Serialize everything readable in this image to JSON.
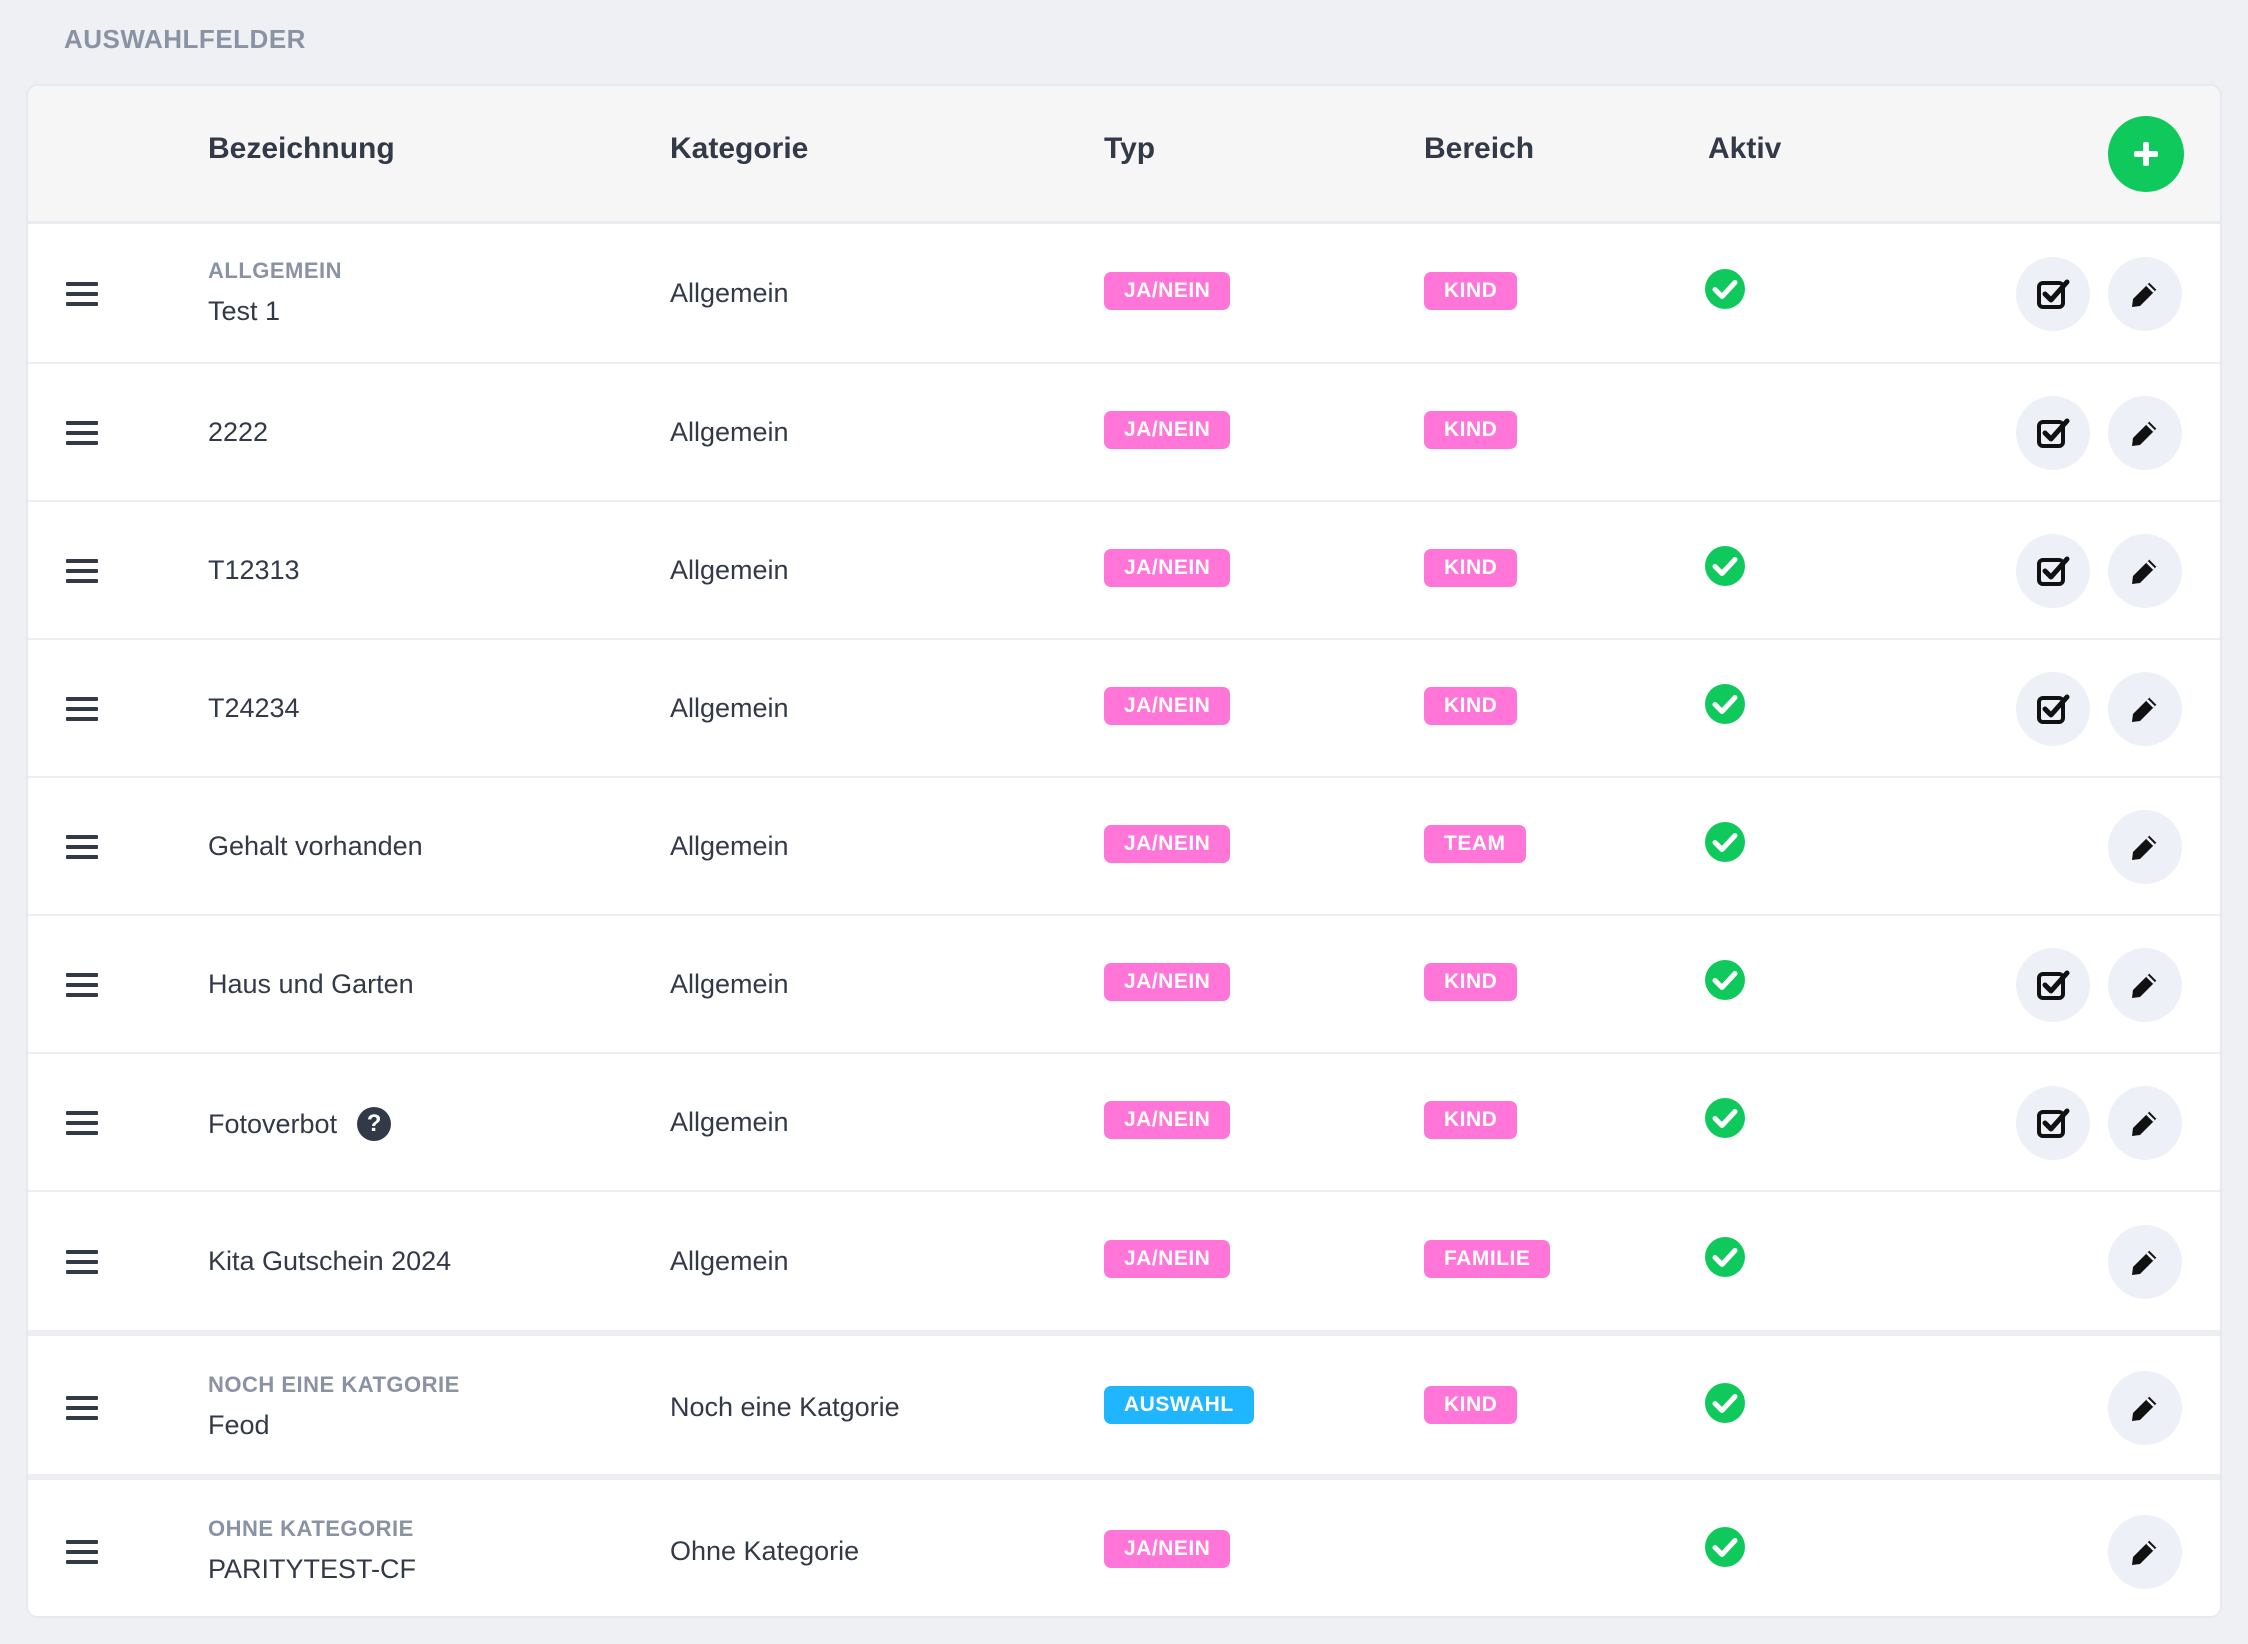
{
  "section_title": "AUSWAHLFELDER",
  "columns": {
    "bezeichnung": "Bezeichnung",
    "kategorie": "Kategorie",
    "typ": "Typ",
    "bereich": "Bereich",
    "aktiv": "Aktiv"
  },
  "colors": {
    "pink_badge": "#ff75d8",
    "blue_badge": "#1fb6ff",
    "green": "#10c95d"
  },
  "rows": [
    {
      "group": "ALLGEMEIN",
      "name": "Test 1",
      "kategorie": "Allgemein",
      "typ": "JA/NEIN",
      "bereich": "KIND",
      "aktiv": true,
      "has_options": true
    },
    {
      "group": "",
      "name": "2222",
      "kategorie": "Allgemein",
      "typ": "JA/NEIN",
      "bereich": "KIND",
      "aktiv": false,
      "has_options": true
    },
    {
      "group": "",
      "name": "T12313",
      "kategorie": "Allgemein",
      "typ": "JA/NEIN",
      "bereich": "KIND",
      "aktiv": true,
      "has_options": true
    },
    {
      "group": "",
      "name": "T24234",
      "kategorie": "Allgemein",
      "typ": "JA/NEIN",
      "bereich": "KIND",
      "aktiv": true,
      "has_options": true
    },
    {
      "group": "",
      "name": "Gehalt vorhanden",
      "kategorie": "Allgemein",
      "typ": "JA/NEIN",
      "bereich": "TEAM",
      "aktiv": true,
      "has_options": false
    },
    {
      "group": "",
      "name": "Haus und Garten",
      "kategorie": "Allgemein",
      "typ": "JA/NEIN",
      "bereich": "KIND",
      "aktiv": true,
      "has_options": true
    },
    {
      "group": "",
      "name": "Fotoverbot",
      "kategorie": "Allgemein",
      "typ": "JA/NEIN",
      "bereich": "KIND",
      "aktiv": true,
      "has_options": true,
      "help": "?"
    },
    {
      "group": "",
      "name": "Kita Gutschein 2024",
      "kategorie": "Allgemein",
      "typ": "JA/NEIN",
      "bereich": "FAMILIE",
      "aktiv": true,
      "has_options": false
    },
    {
      "group": "NOCH EINE KATGORIE",
      "name": "Feod",
      "kategorie": "Noch eine Katgorie",
      "typ": "AUSWAHL",
      "bereich": "KIND",
      "aktiv": true,
      "has_options": false
    },
    {
      "group": "OHNE KATEGORIE",
      "name": "PARITYTEST-CF",
      "kategorie": "Ohne Kategorie",
      "typ": "JA/NEIN",
      "bereich": "",
      "aktiv": true,
      "has_options": false
    }
  ]
}
